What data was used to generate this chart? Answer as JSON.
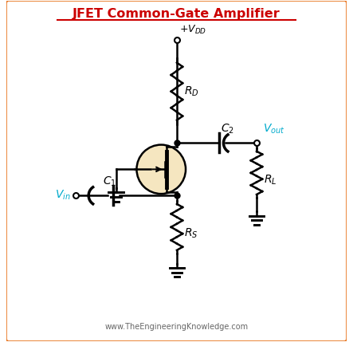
{
  "title": "JFET Common-Gate Amplifier",
  "title_color": "#cc0000",
  "border_color": "#e87722",
  "bg_color": "#ffffff",
  "circuit_color": "#000000",
  "cyan_color": "#00aacc",
  "watermark": "www.TheEngineeringKnowledge.com",
  "watermark_color": "#666666",
  "jfet_fill": "#f5e6c0",
  "figsize": [
    4.43,
    4.29
  ],
  "dpi": 100
}
